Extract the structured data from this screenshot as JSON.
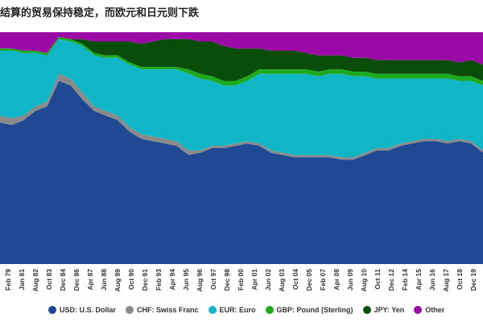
{
  "chart_data": {
    "type": "area",
    "stacking": "percent",
    "title": "结算的贸易保持稳定，而欧元和日元则下跌",
    "xlabel": "",
    "ylabel": "",
    "ylim": [
      0,
      100
    ],
    "grid": false,
    "legend_position": "bottom",
    "x_tick_labels": [
      "Feb 79",
      "Jan 81",
      "Aug 82",
      "Oct 83",
      "Dec 84",
      "Dec 86",
      "Apr 87",
      "Jun 88",
      "Aug 89",
      "Oct 90",
      "Dec 91",
      "Feb 93",
      "Apr 94",
      "Jun 95",
      "Aug 96",
      "Oct 97",
      "Dec 98",
      "Feb 00",
      "Apr 01",
      "Jun 02",
      "Aug 03",
      "Oct 04",
      "Dec 05",
      "Feb 07",
      "Apr 08",
      "Jun 09",
      "Aug 10",
      "Oct 11",
      "Dec 12",
      "Feb 14",
      "Apr 15",
      "Jun 16",
      "Aug 17",
      "Oct 18",
      "Dec 19"
    ],
    "x": [
      "1979",
      "1980",
      "1981",
      "1982",
      "1983",
      "1984",
      "1985",
      "1986",
      "1987",
      "1988",
      "1989",
      "1990",
      "1991",
      "1992",
      "1993",
      "1994",
      "1995",
      "1996",
      "1997",
      "1998",
      "1999",
      "2000",
      "2001",
      "2002",
      "2003",
      "2004",
      "2005",
      "2006",
      "2007",
      "2008",
      "2009",
      "2010",
      "2011",
      "2012",
      "2013",
      "2014",
      "2015",
      "2016",
      "2017",
      "2018",
      "2019",
      "2020"
    ],
    "series": [
      {
        "name": "USD: U.S. Dollar",
        "color": "#1f4a93",
        "values": [
          61,
          60,
          62,
          66,
          68,
          79,
          77,
          71,
          66,
          64,
          62,
          57,
          54,
          53,
          52,
          51,
          47,
          48,
          50,
          50,
          51,
          52,
          51,
          48,
          47,
          46,
          46,
          46,
          46,
          45,
          45,
          47,
          49,
          49,
          51,
          52,
          53,
          53,
          52,
          53,
          52,
          48
        ]
      },
      {
        "name": "CHF: Swiss Franc",
        "color": "#8a8a8a",
        "values": [
          3,
          3,
          2,
          2,
          2,
          3,
          3,
          3,
          2,
          2,
          2,
          2,
          2,
          2,
          2,
          2,
          2,
          1,
          1,
          1,
          1,
          1,
          1,
          1,
          1,
          1,
          1,
          1,
          1,
          1,
          1,
          1,
          1,
          1,
          1,
          1,
          1,
          1,
          1,
          1,
          1,
          1
        ]
      },
      {
        "name": "EUR: Euro",
        "color": "#10b5c6",
        "values": [
          28,
          29,
          27,
          23,
          20,
          15,
          16,
          20,
          22,
          23,
          25,
          27,
          28,
          29,
          30,
          31,
          33,
          31,
          28,
          26,
          25,
          26,
          30,
          33,
          34,
          35,
          35,
          34,
          35,
          36,
          35,
          33,
          30,
          30,
          28,
          27,
          26,
          26,
          27,
          25,
          26,
          28
        ]
      },
      {
        "name": "GBP: Pound (Sterling)",
        "color": "#1eaa1e",
        "values": [
          1,
          1,
          1,
          1,
          1,
          1,
          1,
          1,
          1,
          1,
          1,
          1,
          1,
          1,
          1,
          1,
          2,
          2,
          2,
          2,
          2,
          2,
          2,
          2,
          2,
          2,
          2,
          2,
          2,
          2,
          2,
          2,
          2,
          2,
          2,
          2,
          2,
          2,
          2,
          2,
          2,
          2
        ]
      },
      {
        "name": "JPY: Yen",
        "color": "#0a4d0a",
        "values": [
          0,
          0,
          0,
          0,
          0,
          0,
          0,
          2,
          5,
          6,
          6,
          9,
          10,
          11,
          12,
          12,
          13,
          14,
          15,
          15,
          14,
          12,
          9,
          8,
          8,
          8,
          7,
          7,
          6,
          6,
          6,
          6,
          6,
          6,
          6,
          6,
          6,
          6,
          6,
          6,
          7,
          7
        ]
      },
      {
        "name": "Other",
        "color": "#9b0aa6",
        "values": [
          7,
          7,
          8,
          8,
          9,
          2,
          3,
          3,
          4,
          4,
          4,
          4,
          5,
          4,
          3,
          3,
          3,
          4,
          4,
          6,
          7,
          7,
          7,
          8,
          8,
          8,
          9,
          10,
          10,
          10,
          11,
          11,
          12,
          12,
          12,
          12,
          12,
          12,
          12,
          13,
          12,
          14
        ]
      }
    ]
  }
}
